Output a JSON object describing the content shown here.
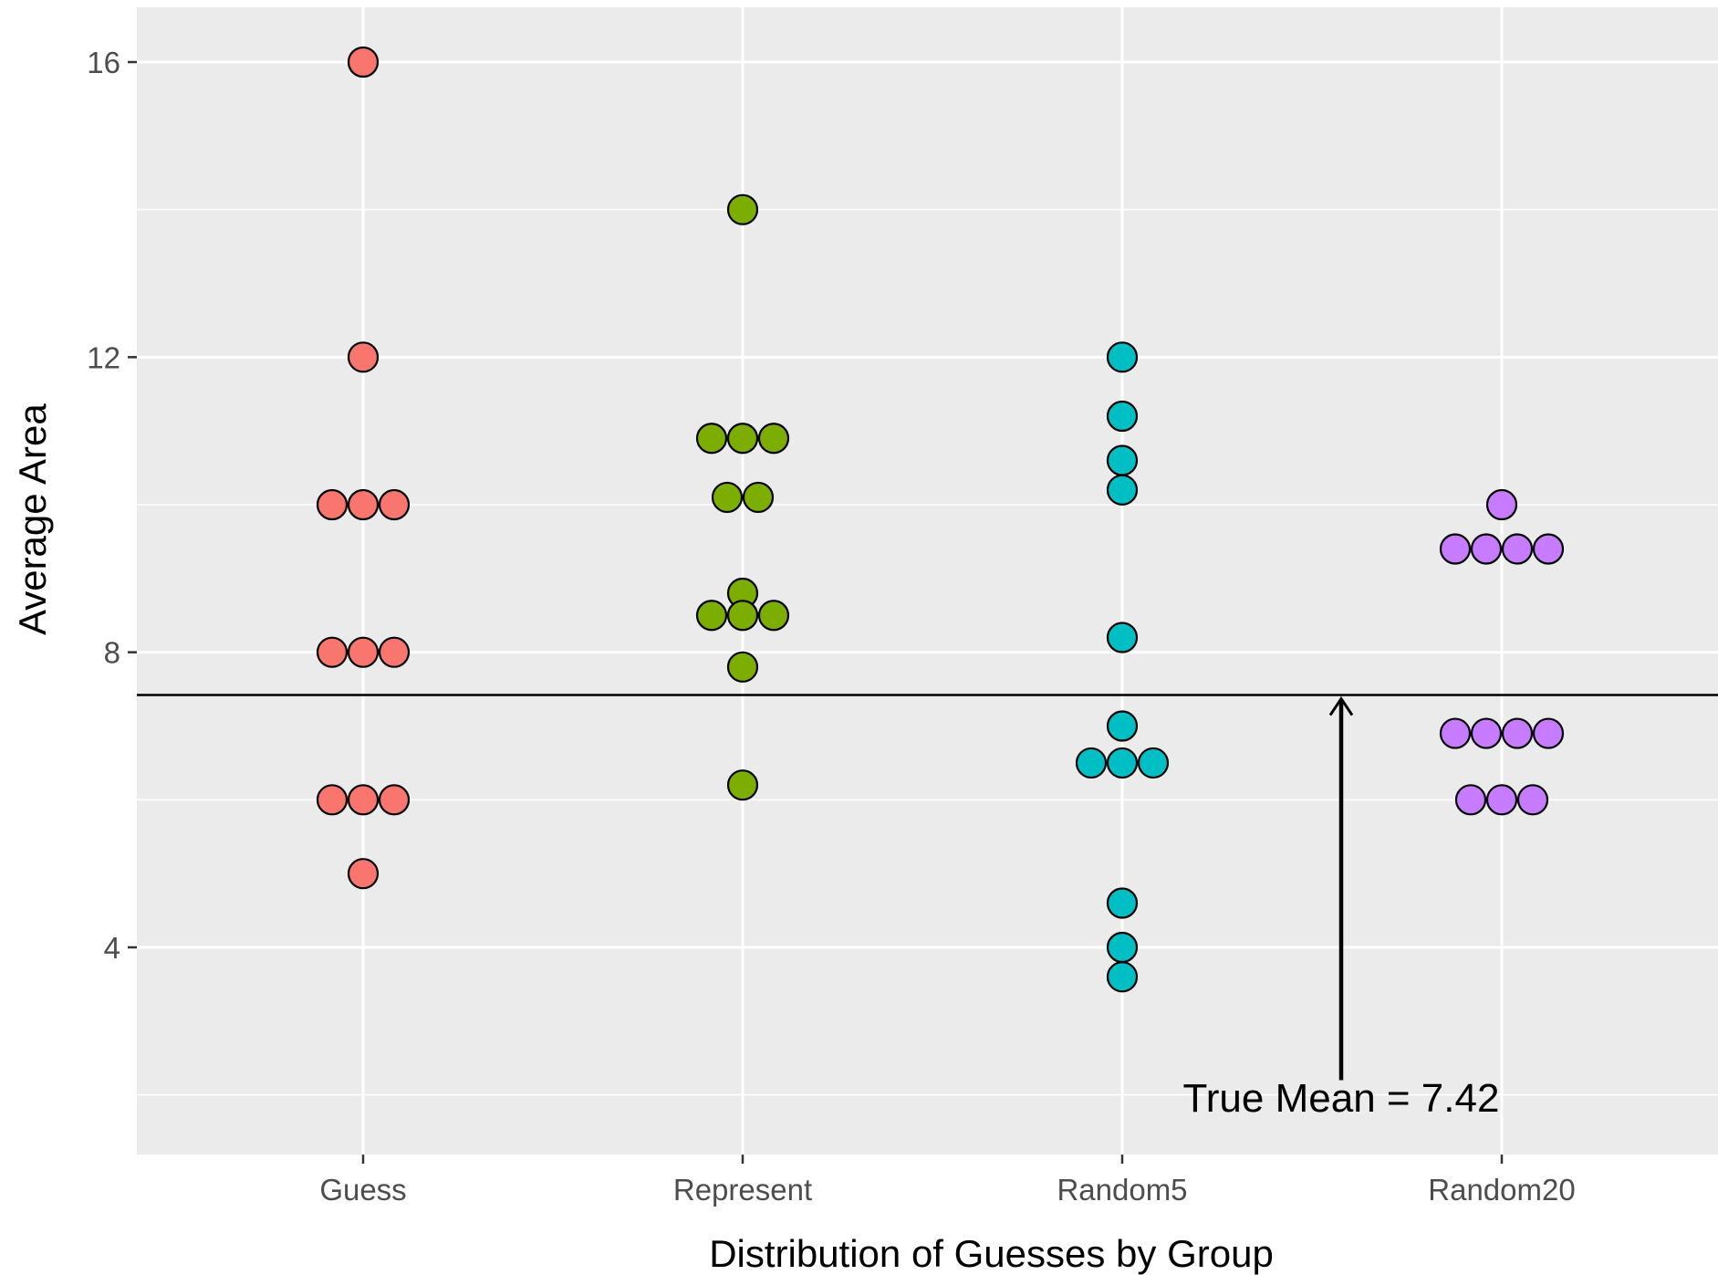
{
  "chart_data": {
    "type": "scatter",
    "style": "dotplot",
    "xlabel": "Distribution of Guesses by Group",
    "ylabel": "Average Area",
    "categories": [
      "Guess",
      "Represent",
      "Random5",
      "Random20"
    ],
    "ylim": [
      1.6,
      17.0
    ],
    "yticks": [
      4,
      8,
      12,
      16
    ],
    "grid": true,
    "legend": "none",
    "series": [
      {
        "category": "Guess",
        "color": "#F8766D",
        "points": [
          {
            "y": 16.0,
            "count": 1
          },
          {
            "y": 12.0,
            "count": 1
          },
          {
            "y": 10.0,
            "count": 3
          },
          {
            "y": 8.0,
            "count": 3
          },
          {
            "y": 6.0,
            "count": 3
          },
          {
            "y": 5.0,
            "count": 1
          }
        ]
      },
      {
        "category": "Represent",
        "color": "#7CAE00",
        "points": [
          {
            "y": 14.0,
            "count": 1
          },
          {
            "y": 10.9,
            "count": 3
          },
          {
            "y": 10.1,
            "count": 2
          },
          {
            "y": 8.8,
            "count": 1
          },
          {
            "y": 8.5,
            "count": 3
          },
          {
            "y": 7.8,
            "count": 1
          },
          {
            "y": 6.2,
            "count": 1
          }
        ]
      },
      {
        "category": "Random5",
        "color": "#00BFC4",
        "points": [
          {
            "y": 12.0,
            "count": 1
          },
          {
            "y": 11.2,
            "count": 1
          },
          {
            "y": 10.6,
            "count": 1
          },
          {
            "y": 10.2,
            "count": 1
          },
          {
            "y": 8.2,
            "count": 1
          },
          {
            "y": 7.0,
            "count": 1
          },
          {
            "y": 6.5,
            "count": 3
          },
          {
            "y": 4.6,
            "count": 1
          },
          {
            "y": 4.0,
            "count": 1
          },
          {
            "y": 3.6,
            "count": 1
          }
        ]
      },
      {
        "category": "Random20",
        "color": "#C77CFF",
        "points": [
          {
            "y": 10.0,
            "count": 1
          },
          {
            "y": 9.4,
            "count": 4
          },
          {
            "y": 6.9,
            "count": 4
          },
          {
            "y": 6.0,
            "count": 3
          }
        ]
      }
    ],
    "reference_line": {
      "y": 7.42,
      "color": "#000000"
    },
    "annotation": {
      "text": "True Mean = 7.42",
      "arrow_from_y": 2.2,
      "arrow_to_y": 7.42,
      "position": "between Random5 and Random20"
    }
  }
}
